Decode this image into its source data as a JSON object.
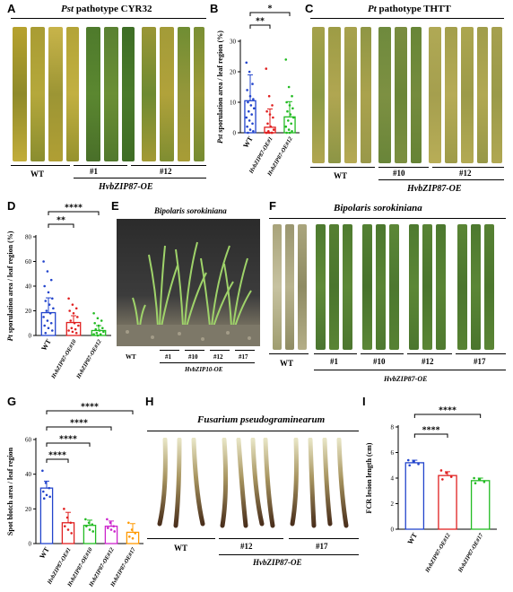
{
  "panels": {
    "A": {
      "letter": "A",
      "title_italic": "Pst",
      "title_rest": " pathotype CYR32",
      "labels": {
        "wt": "WT",
        "g1": "#1",
        "g2": "#12",
        "group": "HvbZIP87-OE"
      }
    },
    "C": {
      "letter": "C",
      "title_italic": "Pt",
      "title_rest": " pathotype THTT",
      "labels": {
        "wt": "WT",
        "g1": "#10",
        "g2": "#12",
        "group": "HvbZIP87-OE"
      }
    },
    "E": {
      "letter": "E",
      "title": "Bipolaris sorokiniana",
      "labels": {
        "wt": "WT",
        "g1": "#1",
        "g2": "#10",
        "g3": "#12",
        "g4": "#17",
        "group": "HvbZIP10-OE"
      }
    },
    "F": {
      "letter": "F",
      "title": "Bipolaris sorokiniana",
      "labels": {
        "wt": "WT",
        "g1": "#1",
        "g2": "#10",
        "g3": "#12",
        "g4": "#17",
        "group": "HvbZIP87-OE"
      }
    },
    "H": {
      "letter": "H",
      "title": "Fusarium pseudograminearum",
      "labels": {
        "wt": "WT",
        "g1": "#12",
        "g2": "#17",
        "group": "HvbZIP87-OE"
      }
    }
  },
  "chart_data": [
    {
      "id": "B",
      "letter": "B",
      "type": "bar",
      "ylabel_italic": "Pst",
      "ylabel_rest": " sporulation area / leaf region (%)",
      "categories": [
        "WT",
        "HvbZIP87-OE#1",
        "HvbZIP87-OE#12"
      ],
      "values": [
        10.5,
        1.8,
        5.2
      ],
      "errors": [
        8.5,
        6.0,
        5.0
      ],
      "ylim": [
        0,
        30
      ],
      "yticks": [
        0,
        10,
        20,
        30
      ],
      "colors": [
        "#2244cc",
        "#e02020",
        "#22bb22"
      ],
      "significance": [
        {
          "label": "**",
          "from": 0,
          "to": 1
        },
        {
          "label": "*",
          "from": 0,
          "to": 2
        }
      ],
      "points": [
        [
          23,
          20,
          16,
          14,
          12,
          11,
          10,
          9,
          8,
          7,
          6,
          5,
          4,
          3,
          2,
          1,
          0.5,
          0
        ],
        [
          21,
          12,
          9,
          7,
          6,
          5,
          3,
          2,
          1,
          0.5,
          0,
          0,
          0,
          0,
          0
        ],
        [
          24,
          15,
          12,
          10,
          9,
          8,
          7,
          6,
          5,
          4,
          3,
          2,
          1,
          0.5,
          0,
          0
        ]
      ]
    },
    {
      "id": "D",
      "letter": "D",
      "type": "bar",
      "ylabel_italic": "Pt",
      "ylabel_rest": " sporulation area / leaf region (%)",
      "categories": [
        "WT",
        "HvbZIP87-OE#10",
        "HvbZIP87-OE#12"
      ],
      "values": [
        18.5,
        10.5,
        4.0
      ],
      "errors": [
        12.0,
        5.5,
        4.0
      ],
      "ylim": [
        0,
        80
      ],
      "yticks": [
        0,
        20,
        40,
        60,
        80
      ],
      "colors": [
        "#2244cc",
        "#e02020",
        "#22bb22"
      ],
      "significance": [
        {
          "label": "**",
          "from": 0,
          "to": 1
        },
        {
          "label": "****",
          "from": 0,
          "to": 2
        }
      ],
      "points": [
        [
          60,
          52,
          45,
          40,
          35,
          30,
          28,
          25,
          22,
          20,
          18,
          15,
          12,
          10,
          8,
          6,
          4,
          2
        ],
        [
          30,
          25,
          22,
          20,
          18,
          15,
          12,
          10,
          8,
          6,
          5,
          4,
          3,
          2
        ],
        [
          18,
          14,
          12,
          10,
          8,
          6,
          5,
          4,
          3,
          2,
          1,
          1,
          0
        ]
      ]
    },
    {
      "id": "G",
      "letter": "G",
      "type": "bar",
      "ylabel": "Spot blotch area / leaf region",
      "categories": [
        "WT",
        "HvbZIP87-OE#1",
        "HvbZIP87-OE#10",
        "HvbZIP87-OE#12",
        "HvbZIP87-OE#17"
      ],
      "values": [
        32,
        12,
        10.5,
        10,
        6.5
      ],
      "errors": [
        4,
        6,
        3,
        3,
        5
      ],
      "ylim": [
        0,
        60
      ],
      "yticks": [
        0,
        20,
        40,
        60
      ],
      "colors": [
        "#2244cc",
        "#e02020",
        "#22bb22",
        "#cc22cc",
        "#ff9900"
      ],
      "significance": [
        {
          "label": "****",
          "from": 0,
          "to": 1
        },
        {
          "label": "****",
          "from": 0,
          "to": 2
        },
        {
          "label": "****",
          "from": 0,
          "to": 3
        },
        {
          "label": "****",
          "from": 0,
          "to": 4
        }
      ],
      "points": [
        [
          42,
          35,
          32,
          30,
          28,
          27,
          26
        ],
        [
          20,
          15,
          12,
          10,
          8,
          6
        ],
        [
          14,
          12,
          11,
          10,
          8,
          7
        ],
        [
          14,
          12,
          10,
          9,
          8,
          7
        ],
        [
          12,
          8,
          6,
          4,
          3
        ]
      ]
    },
    {
      "id": "I",
      "letter": "I",
      "type": "bar",
      "ylabel": "FCR lesion length (cm)",
      "categories": [
        "WT",
        "HvbZIP87-OE#12",
        "HvbZIP87-OE#17"
      ],
      "values": [
        5.2,
        4.2,
        3.8
      ],
      "errors": [
        0.2,
        0.3,
        0.2
      ],
      "ylim": [
        0,
        8
      ],
      "yticks": [
        0,
        2,
        4,
        6,
        8
      ],
      "colors": [
        "#2244cc",
        "#e02020",
        "#22bb22"
      ],
      "significance": [
        {
          "label": "****",
          "from": 0,
          "to": 1
        },
        {
          "label": "****",
          "from": 0,
          "to": 2
        }
      ],
      "points": [
        [
          5.4,
          5.3,
          5.1,
          5.0
        ],
        [
          4.6,
          4.4,
          4.1,
          3.9
        ],
        [
          4.0,
          3.9,
          3.7,
          3.6
        ]
      ]
    }
  ]
}
